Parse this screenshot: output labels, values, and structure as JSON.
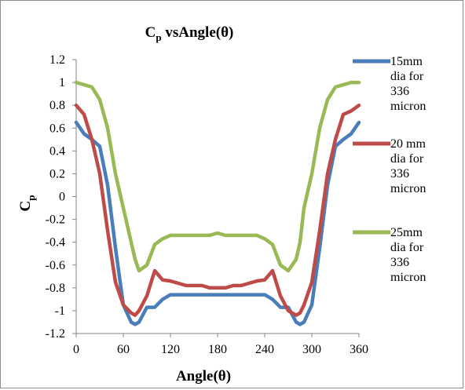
{
  "chart_data": {
    "type": "line",
    "title": "C",
    "title_sub": "p",
    "title_rest": " vsAngle(θ)",
    "xlabel": "Angle(θ)",
    "ylabel": "C",
    "ylabel_sub": "p",
    "xlim": [
      0,
      360
    ],
    "ylim": [
      -1.2,
      1.2
    ],
    "xticks": [
      0,
      60,
      120,
      180,
      240,
      300,
      360
    ],
    "yticks": [
      -1.2,
      -1,
      -0.8,
      -0.6,
      -0.4,
      -0.2,
      0,
      0.2,
      0.4,
      0.6,
      0.8,
      1,
      1.2
    ],
    "xtick_labels": [
      "0",
      "60",
      "120",
      "180",
      "240",
      "300",
      "360"
    ],
    "ytick_labels": [
      "-1.2",
      "-1",
      "-0.8",
      "-0.6",
      "-0.4",
      "-0.2",
      "0",
      "0.2",
      "0.4",
      "0.6",
      "0.8",
      "1",
      "1.2"
    ],
    "grid": false,
    "legend_position": "right",
    "series": [
      {
        "name": "15mm dia for 336 micron",
        "legend_lines": [
          "15mm",
          "dia for",
          "336",
          "micron"
        ],
        "color": "#4a7ebb",
        "x": [
          0,
          10,
          20,
          30,
          40,
          50,
          60,
          70,
          75,
          80,
          90,
          100,
          110,
          120,
          130,
          140,
          150,
          160,
          170,
          180,
          190,
          200,
          210,
          220,
          230,
          240,
          250,
          260,
          270,
          280,
          285,
          290,
          300,
          310,
          320,
          330,
          340,
          350,
          360
        ],
        "y": [
          0.65,
          0.55,
          0.5,
          0.44,
          0.1,
          -0.45,
          -0.95,
          -1.1,
          -1.12,
          -1.1,
          -0.97,
          -0.97,
          -0.9,
          -0.86,
          -0.86,
          -0.86,
          -0.86,
          -0.86,
          -0.86,
          -0.86,
          -0.86,
          -0.86,
          -0.86,
          -0.86,
          -0.86,
          -0.86,
          -0.9,
          -0.97,
          -0.97,
          -1.1,
          -1.12,
          -1.1,
          -0.95,
          -0.45,
          0.1,
          0.44,
          0.5,
          0.55,
          0.65
        ]
      },
      {
        "name": "20 mm dia for 336 micron",
        "legend_lines": [
          "20 mm",
          "dia for",
          "336",
          "micron"
        ],
        "color": "#be4b48",
        "x": [
          0,
          10,
          20,
          30,
          40,
          50,
          60,
          70,
          75,
          80,
          90,
          100,
          110,
          120,
          130,
          140,
          150,
          160,
          170,
          180,
          190,
          200,
          210,
          220,
          230,
          240,
          250,
          260,
          270,
          280,
          285,
          290,
          300,
          310,
          320,
          330,
          340,
          350,
          360
        ],
        "y": [
          0.8,
          0.72,
          0.5,
          0.2,
          -0.3,
          -0.75,
          -0.95,
          -1.02,
          -1.04,
          -1.0,
          -0.87,
          -0.65,
          -0.73,
          -0.74,
          -0.76,
          -0.78,
          -0.78,
          -0.78,
          -0.8,
          -0.8,
          -0.8,
          -0.78,
          -0.78,
          -0.76,
          -0.74,
          -0.73,
          -0.65,
          -0.87,
          -1.0,
          -1.04,
          -1.02,
          -0.95,
          -0.75,
          -0.3,
          0.2,
          0.5,
          0.72,
          0.75,
          0.8
        ]
      },
      {
        "name": "25mm dia for 336 micron",
        "legend_lines": [
          "25mm",
          "dia for",
          "336",
          "micron"
        ],
        "color": "#98b954",
        "x": [
          0,
          10,
          20,
          30,
          40,
          50,
          60,
          70,
          75,
          80,
          90,
          100,
          110,
          120,
          130,
          140,
          150,
          160,
          170,
          180,
          190,
          200,
          210,
          220,
          230,
          240,
          250,
          260,
          270,
          280,
          285,
          290,
          300,
          310,
          320,
          330,
          340,
          350,
          360
        ],
        "y": [
          1.0,
          0.98,
          0.96,
          0.85,
          0.6,
          0.2,
          -0.1,
          -0.4,
          -0.55,
          -0.65,
          -0.6,
          -0.42,
          -0.37,
          -0.34,
          -0.34,
          -0.34,
          -0.34,
          -0.34,
          -0.34,
          -0.32,
          -0.34,
          -0.34,
          -0.34,
          -0.34,
          -0.34,
          -0.37,
          -0.42,
          -0.6,
          -0.65,
          -0.55,
          -0.4,
          -0.1,
          0.2,
          0.6,
          0.85,
          0.96,
          0.98,
          1.0,
          1.0
        ]
      }
    ]
  }
}
